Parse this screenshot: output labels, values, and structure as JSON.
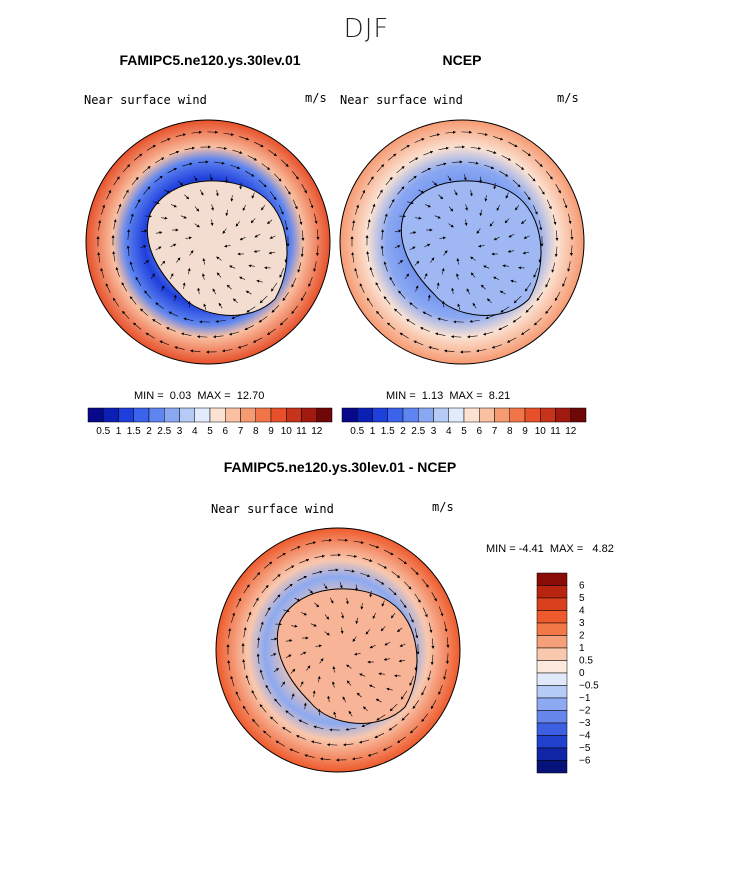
{
  "figure": {
    "season": "DJF"
  },
  "panels": [
    {
      "title": "FAMIPC5.ne120.ys.30lev.01",
      "variable": "Near surface wind",
      "units": "m/s",
      "min_label": "MIN =",
      "min": "0.03",
      "max_label": "MAX =",
      "max": "12.70"
    },
    {
      "title": "NCEP",
      "variable": "Near surface wind",
      "units": "m/s",
      "min_label": "MIN =",
      "min": "1.13",
      "max_label": "MAX =",
      "max": "8.21"
    },
    {
      "title": "FAMIPC5.ne120.ys.30lev.01 - NCEP",
      "variable": "Near surface wind",
      "units": "m/s",
      "min_label": "MIN =",
      "min": "-4.41",
      "max_label": "MAX =",
      "max": "4.82"
    }
  ],
  "colorbar_main": {
    "labels": [
      "0.5",
      "1",
      "1.5",
      "2",
      "2.5",
      "3",
      "4",
      "5",
      "6",
      "7",
      "8",
      "9",
      "10",
      "11",
      "12"
    ],
    "colors": [
      "#08088a",
      "#0c1fb4",
      "#1f3fdc",
      "#3b63ec",
      "#5f86f0",
      "#8aa8f2",
      "#b5cbf5",
      "#e2ebfb",
      "#fbe2d2",
      "#f9c0a2",
      "#f69a72",
      "#f2754a",
      "#e7502a",
      "#c8331b",
      "#a01a10",
      "#6e0705"
    ]
  },
  "colorbar_diff": {
    "labels": [
      "6",
      "5",
      "4",
      "3",
      "2",
      "1",
      "0.5",
      "0",
      "−0.5",
      "−1",
      "−2",
      "−3",
      "−4",
      "−5",
      "−6"
    ],
    "colors": [
      "#8a0c06",
      "#b8240f",
      "#d9401c",
      "#ee5a2c",
      "#f27848",
      "#f5a07a",
      "#f9c8ae",
      "#fde9dd",
      "#dfe9fa",
      "#b3cbf5",
      "#8ca9f1",
      "#6686ec",
      "#3f5fe2",
      "#2140cc",
      "#1026a6",
      "#06127a"
    ]
  }
}
